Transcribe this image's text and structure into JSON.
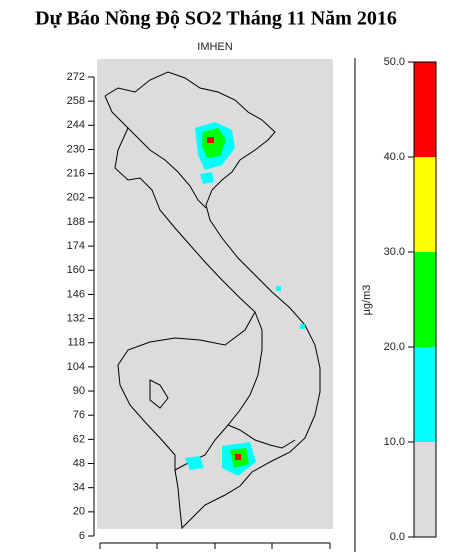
{
  "header": {
    "title": "Dự Báo Nồng Độ SO2 Tháng 11 Năm 2016"
  },
  "map": {
    "subtitle": "IMHEN",
    "yticks": [
      6,
      20,
      34,
      48,
      62,
      76,
      90,
      104,
      118,
      132,
      146,
      160,
      174,
      188,
      202,
      216,
      230,
      244,
      258,
      272
    ]
  },
  "legend": {
    "unit": "µg/m3",
    "range": [
      0,
      50
    ],
    "ticks": [
      {
        "value": 0,
        "label": "0.0"
      },
      {
        "value": 10,
        "label": "10.0"
      },
      {
        "value": 20,
        "label": "20.0"
      },
      {
        "value": 30,
        "label": "30.0"
      },
      {
        "value": 40,
        "label": "40.0"
      },
      {
        "value": 50,
        "label": "50.0"
      }
    ],
    "colors": [
      "#dcdcdc",
      "#00ffff",
      "#00ff00",
      "#ffff00",
      "#ff0000"
    ]
  }
}
